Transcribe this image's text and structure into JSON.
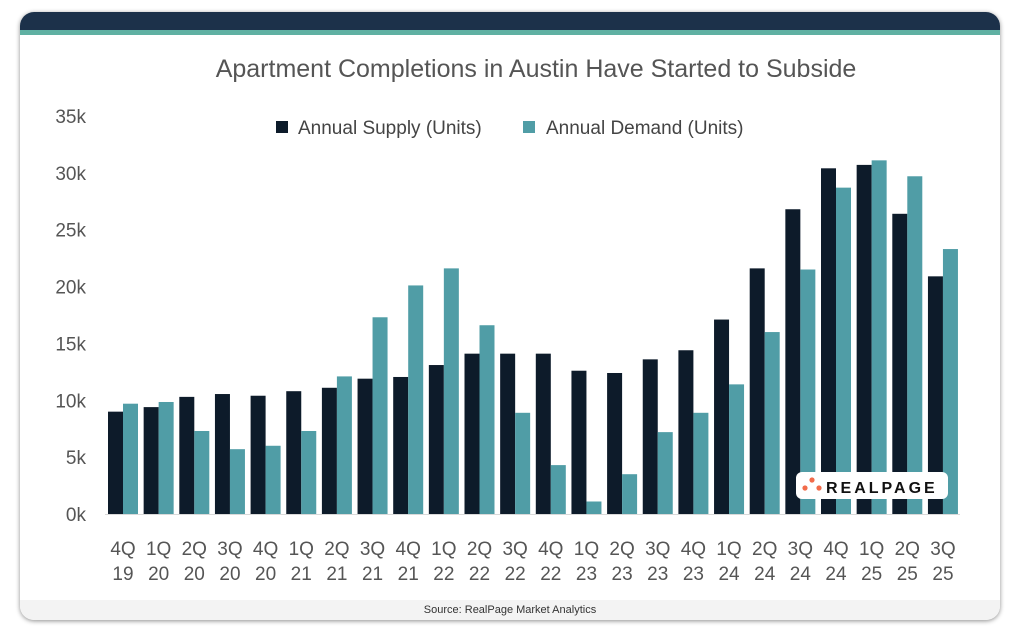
{
  "chart_data": {
    "type": "bar",
    "title": "Apartment Completions in Austin Have Started to Subside",
    "xlabel": "",
    "ylabel": "",
    "ylim": [
      0,
      35000
    ],
    "yticks": [
      "0k",
      "5k",
      "10k",
      "15k",
      "20k",
      "25k",
      "30k",
      "35k"
    ],
    "grid": false,
    "legend_position": "top",
    "categories": [
      [
        "4Q",
        "19"
      ],
      [
        "1Q",
        "20"
      ],
      [
        "2Q",
        "20"
      ],
      [
        "3Q",
        "20"
      ],
      [
        "4Q",
        "20"
      ],
      [
        "1Q",
        "21"
      ],
      [
        "2Q",
        "21"
      ],
      [
        "3Q",
        "21"
      ],
      [
        "4Q",
        "21"
      ],
      [
        "1Q",
        "22"
      ],
      [
        "2Q",
        "22"
      ],
      [
        "3Q",
        "22"
      ],
      [
        "4Q",
        "22"
      ],
      [
        "1Q",
        "23"
      ],
      [
        "2Q",
        "23"
      ],
      [
        "3Q",
        "23"
      ],
      [
        "4Q",
        "23"
      ],
      [
        "1Q",
        "24"
      ],
      [
        "2Q",
        "24"
      ],
      [
        "3Q",
        "24"
      ],
      [
        "4Q",
        "24"
      ],
      [
        "1Q",
        "25"
      ],
      [
        "2Q",
        "25"
      ],
      [
        "3Q",
        "25"
      ]
    ],
    "series": [
      {
        "name": "Annual Supply (Units)",
        "color": "#0d1b2a",
        "values": [
          9000,
          9400,
          10300,
          10550,
          10400,
          10800,
          11100,
          11900,
          12050,
          13100,
          14100,
          14100,
          14100,
          12600,
          12400,
          13600,
          14400,
          17100,
          21600,
          26800,
          30400,
          30700,
          26400,
          20900
        ]
      },
      {
        "name": "Annual Demand (Units)",
        "color": "#509da6",
        "values": [
          9700,
          9850,
          7300,
          5700,
          6000,
          7300,
          12100,
          17300,
          20100,
          21600,
          16600,
          8900,
          4300,
          1100,
          3500,
          7200,
          8900,
          11400,
          16000,
          21500,
          28700,
          31100,
          29700,
          23300
        ]
      }
    ]
  },
  "source": "Source: RealPage Market Analytics",
  "logo": {
    "text": "REALPAGE",
    "dot_color": "#f26b4a"
  }
}
